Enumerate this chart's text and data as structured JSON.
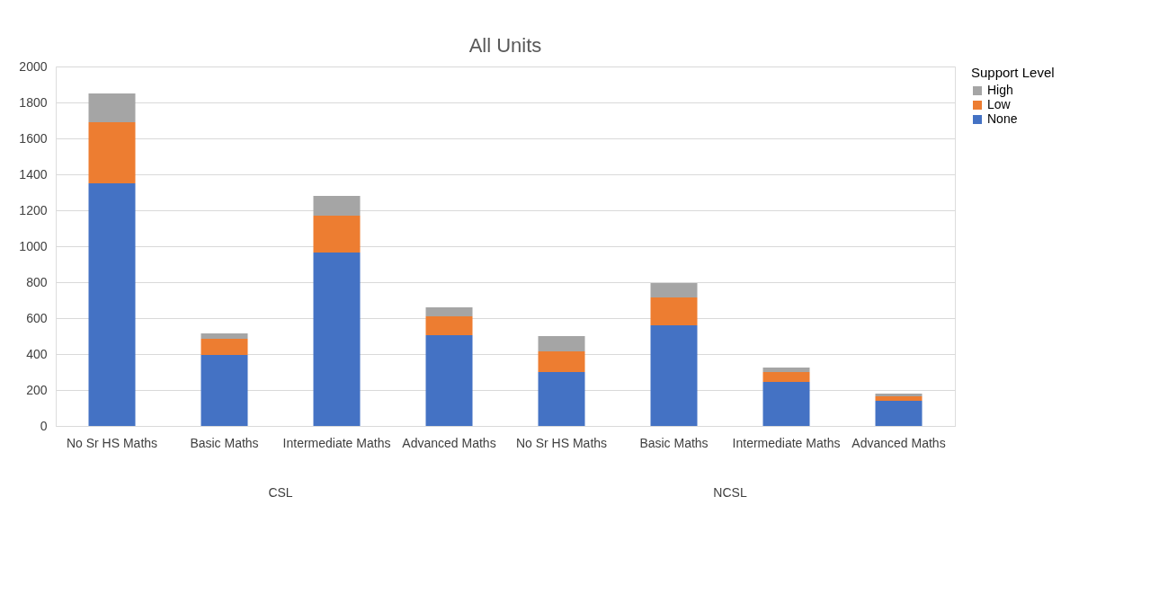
{
  "chart_data": {
    "type": "bar",
    "title": "All Units",
    "stacked": true,
    "categories": [
      "No Sr HS Maths",
      "Basic Maths",
      "Intermediate Maths",
      "Advanced Maths",
      "No Sr HS Maths",
      "Basic Maths",
      "Intermediate Maths",
      "Advanced Maths"
    ],
    "series": [
      {
        "name": "None",
        "color": "#4472c4",
        "values": [
          1350,
          395,
          965,
          505,
          300,
          560,
          245,
          140
        ]
      },
      {
        "name": "Low",
        "color": "#ed7d31",
        "values": [
          340,
          90,
          205,
          105,
          115,
          155,
          55,
          25
        ]
      },
      {
        "name": "High",
        "color": "#a5a5a5",
        "values": [
          160,
          30,
          110,
          50,
          85,
          80,
          25,
          15
        ]
      }
    ],
    "legend_title": "Support Level",
    "legend": "right",
    "ylim": [
      0,
      2000
    ],
    "yticks": [
      0,
      200,
      400,
      600,
      800,
      1000,
      1200,
      1400,
      1600,
      1800,
      2000
    ],
    "grid": "y",
    "annotations": [
      "CSL",
      "NCSL"
    ]
  }
}
